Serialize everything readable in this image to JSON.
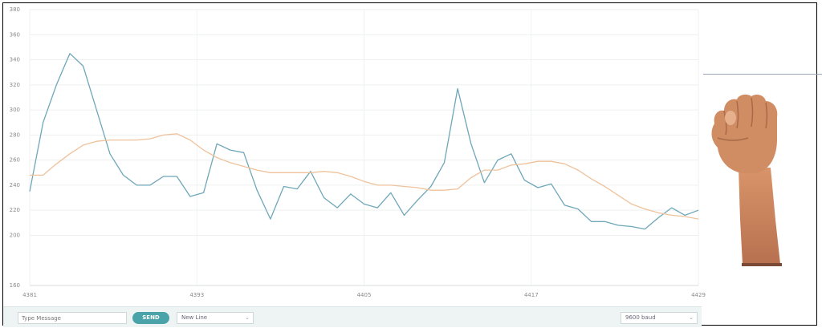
{
  "plotter": {
    "y_ticks": [
      "160",
      "200",
      "220",
      "240",
      "260",
      "280",
      "300",
      "320",
      "340",
      "360",
      "380"
    ],
    "x_ticks": [
      "4381",
      "4393",
      "4405",
      "4417",
      "4429"
    ]
  },
  "toolbar": {
    "message_placeholder": "Type Message",
    "send_label": "SEND",
    "line_ending": "New Line",
    "baud_rate": "9600 baud"
  },
  "colors": {
    "series_1": "#6ea7b8",
    "series_2": "#efc29b",
    "toolbar_bg": "#eef3f3",
    "send_button": "#4aa3a8",
    "skin": "#c98a63"
  },
  "icons": {
    "hand": "raised-fist-icon"
  },
  "chart_data": {
    "type": "line",
    "x_range": [
      4381,
      4429
    ],
    "ylim": [
      160,
      380
    ],
    "series": [
      {
        "values": [
          235,
          290,
          320,
          345,
          335,
          300,
          265,
          248,
          240,
          240,
          247,
          247,
          231,
          234,
          273,
          268,
          266,
          236,
          213,
          239,
          237,
          251,
          230,
          222,
          233,
          225,
          222,
          234,
          216,
          228,
          239,
          258,
          317,
          273,
          242,
          260,
          265,
          244,
          238,
          241,
          224,
          221,
          211,
          211,
          208,
          207,
          205,
          214,
          222,
          216,
          220
        ]
      },
      {
        "values": [
          248,
          248,
          257,
          265,
          272,
          275,
          276,
          276,
          276,
          277,
          280,
          281,
          276,
          268,
          262,
          258,
          255,
          252,
          250,
          250,
          250,
          250,
          251,
          250,
          247,
          243,
          240,
          240,
          239,
          238,
          236,
          236,
          237,
          246,
          252,
          252,
          256,
          257,
          259,
          259,
          257,
          252,
          245,
          239,
          232,
          225,
          221,
          218,
          216,
          215,
          213
        ]
      }
    ]
  }
}
